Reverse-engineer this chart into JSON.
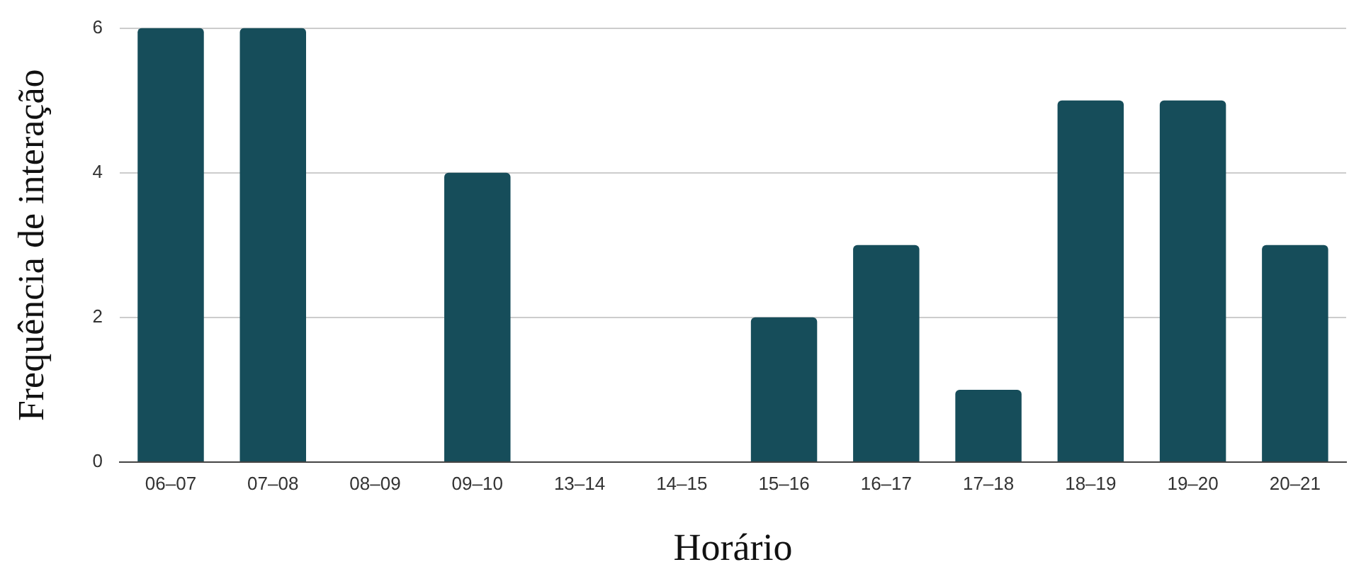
{
  "chart_data": {
    "type": "bar",
    "xlabel": "Horário",
    "ylabel": "Frequência de interação",
    "categories": [
      "06–07",
      "07–08",
      "08–09",
      "09–10",
      "13–14",
      "14–15",
      "15–16",
      "16–17",
      "17–18",
      "18–19",
      "19–20",
      "20–21"
    ],
    "values": [
      6,
      6,
      0,
      4,
      0,
      0,
      2,
      3,
      1,
      5,
      5,
      3
    ],
    "color": "#164d5a",
    "ylim": [
      0,
      6
    ],
    "yticks": [
      0,
      2,
      4,
      6
    ],
    "grid": "y",
    "legend": false
  }
}
